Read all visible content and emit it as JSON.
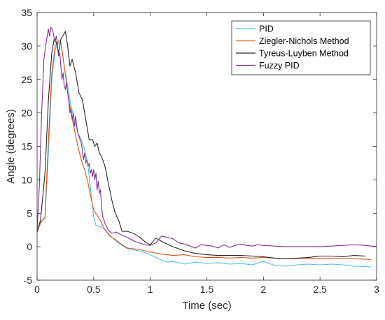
{
  "chart_data": {
    "type": "line",
    "xlabel": "Time (sec)",
    "ylabel": "Angle (degrees)",
    "xlim": [
      0,
      3
    ],
    "ylim": [
      -5,
      35
    ],
    "xticks": [
      "0",
      "0.5",
      "1",
      "1.5",
      "2",
      "2.5",
      "3"
    ],
    "yticks": [
      "-5",
      "0",
      "5",
      "10",
      "15",
      "20",
      "25",
      "30",
      "35"
    ],
    "grid": false,
    "legend_position": "top-right",
    "series": [
      {
        "name": "PID",
        "color": "#4DBEEE",
        "x": [
          0,
          0.03,
          0.07,
          0.1,
          0.13,
          0.16,
          0.19,
          0.21,
          0.24,
          0.27,
          0.3,
          0.33,
          0.36,
          0.39,
          0.42,
          0.45,
          0.47,
          0.49,
          0.5,
          0.52,
          0.55,
          0.6,
          0.65,
          0.7,
          0.75,
          0.8,
          0.9,
          1.0,
          1.1,
          1.15,
          1.2,
          1.3,
          1.4,
          1.5,
          1.6,
          1.7,
          1.8,
          1.9,
          2.0,
          2.1,
          2.2,
          2.3,
          2.4,
          2.5,
          2.6,
          2.7,
          2.8,
          2.95
        ],
        "y": [
          2.3,
          3.7,
          4.2,
          14,
          25,
          29.5,
          30.5,
          30.3,
          27,
          24,
          21,
          19,
          17,
          16,
          14.5,
          12,
          9,
          6,
          4.5,
          3.2,
          3.1,
          2.6,
          1.6,
          0.8,
          0.2,
          -0.3,
          -0.6,
          -1.2,
          -2.0,
          -2.3,
          -2.2,
          -2.6,
          -2.3,
          -2.5,
          -2.4,
          -2.6,
          -2.5,
          -2.7,
          -2.2,
          -2.8,
          -2.9,
          -2.7,
          -2.6,
          -2.7,
          -2.6,
          -2.7,
          -2.9,
          -3.0
        ]
      },
      {
        "name": "Ziegler-Nichols Method",
        "color": "#D95319",
        "x": [
          0,
          0.03,
          0.07,
          0.1,
          0.13,
          0.16,
          0.19,
          0.21,
          0.24,
          0.27,
          0.3,
          0.33,
          0.36,
          0.39,
          0.42,
          0.45,
          0.48,
          0.5,
          0.55,
          0.6,
          0.65,
          0.7,
          0.75,
          0.8,
          0.9,
          1.0,
          1.1,
          1.2,
          1.3,
          1.4,
          1.5,
          1.6,
          1.7,
          1.8,
          1.9,
          2.0,
          2.2,
          2.4,
          2.6,
          2.8,
          2.95
        ],
        "y": [
          2.3,
          3.5,
          4.5,
          16,
          26,
          30,
          30.8,
          30.6,
          27,
          23,
          20,
          17.5,
          15,
          13,
          11.5,
          9.5,
          7,
          5.5,
          4.2,
          2.5,
          1.5,
          1.0,
          0.3,
          -0.2,
          -0.4,
          -0.8,
          -1.1,
          -1.3,
          -1.2,
          -1.5,
          -1.6,
          -1.6,
          -1.7,
          -1.6,
          -1.7,
          -1.6,
          -1.8,
          -1.7,
          -1.8,
          -1.8,
          -1.9
        ]
      },
      {
        "name": "Tyreus-Luyben Method",
        "color": "#262626",
        "x": [
          0,
          0.03,
          0.07,
          0.1,
          0.13,
          0.15,
          0.17,
          0.19,
          0.21,
          0.23,
          0.25,
          0.27,
          0.29,
          0.31,
          0.34,
          0.37,
          0.4,
          0.43,
          0.46,
          0.49,
          0.51,
          0.53,
          0.55,
          0.57,
          0.6,
          0.63,
          0.66,
          0.69,
          0.72,
          0.75,
          0.8,
          0.85,
          0.9,
          0.95,
          1.0,
          1.05,
          1.1,
          1.2,
          1.3,
          1.4,
          1.5,
          1.6,
          1.7,
          1.8,
          1.9,
          2.0,
          2.1,
          2.2,
          2.3,
          2.4,
          2.5,
          2.6,
          2.7,
          2.8,
          2.9
        ],
        "y": [
          2.2,
          4,
          11,
          22,
          29,
          31,
          30.5,
          29,
          31,
          31.6,
          32.2,
          30,
          27,
          28,
          26,
          23,
          22,
          19,
          16,
          16,
          15,
          15.5,
          14,
          13.5,
          12,
          9.5,
          7,
          5,
          4,
          2.3,
          2.3,
          2.0,
          1.5,
          0.8,
          0.3,
          1.3,
          0.8,
          0,
          -0.6,
          -1.0,
          -1.2,
          -1.3,
          -1.3,
          -1.3,
          -1.4,
          -1.5,
          -1.7,
          -1.8,
          -1.7,
          -1.6,
          -1.4,
          -1.4,
          -1.5,
          -1.3,
          -1.4
        ]
      },
      {
        "name": "Fuzzy PID",
        "color": "#7E2F8E",
        "x": [
          0,
          0.02,
          0.04,
          0.06,
          0.08,
          0.09,
          0.1,
          0.11,
          0.12,
          0.13,
          0.14,
          0.15,
          0.16,
          0.17,
          0.18,
          0.19,
          0.2,
          0.21,
          0.22,
          0.23,
          0.24,
          0.25,
          0.26,
          0.27,
          0.28,
          0.29,
          0.3,
          0.31,
          0.32,
          0.33,
          0.34,
          0.35,
          0.36,
          0.37,
          0.38,
          0.39,
          0.4,
          0.41,
          0.42,
          0.43,
          0.44,
          0.45,
          0.46,
          0.47,
          0.48,
          0.49,
          0.5,
          0.51,
          0.52,
          0.53,
          0.54,
          0.55,
          0.56,
          0.57,
          0.58,
          0.6,
          0.63,
          0.66,
          0.7,
          0.74,
          0.78,
          0.82,
          0.86,
          0.9,
          0.95,
          1.0,
          1.05,
          1.1,
          1.15,
          1.2,
          1.25,
          1.3,
          1.35,
          1.4,
          1.45,
          1.5,
          1.55,
          1.6,
          1.65,
          1.7,
          1.75,
          1.8,
          1.85,
          1.9,
          1.95,
          2.0,
          2.1,
          2.2,
          2.3,
          2.4,
          2.5,
          2.6,
          2.7,
          2.8,
          2.9,
          3.0
        ],
        "y": [
          2.5,
          9,
          20,
          28,
          30.5,
          31.5,
          32.5,
          31.5,
          32.8,
          32.6,
          32.2,
          31.2,
          30.8,
          31.5,
          30,
          28.5,
          29,
          27,
          25,
          26,
          24,
          23.5,
          24.5,
          23,
          21.8,
          20,
          20.5,
          19,
          20,
          18,
          19.5,
          18,
          17,
          16.5,
          16,
          15.5,
          14.5,
          13,
          14,
          12.5,
          13,
          12,
          12.5,
          11,
          11.5,
          10.5,
          11.5,
          10,
          11,
          8.5,
          9.8,
          8,
          8.5,
          6,
          4.5,
          3.5,
          2.5,
          2.0,
          2.2,
          1.8,
          1.5,
          1.2,
          0.8,
          0.6,
          0.3,
          0.2,
          0.6,
          1.6,
          1.4,
          1.2,
          0.6,
          0.4,
          0.1,
          -0.2,
          0.3,
          0.2,
          0.1,
          -0.2,
          0.3,
          -0.1,
          0.2,
          0.4,
          0.2,
          0.1,
          0.3,
          0.2,
          0.1,
          0.0,
          0.0,
          0.0,
          0.0,
          0.1,
          0.2,
          0.3,
          0.2,
          0.0
        ]
      }
    ]
  }
}
